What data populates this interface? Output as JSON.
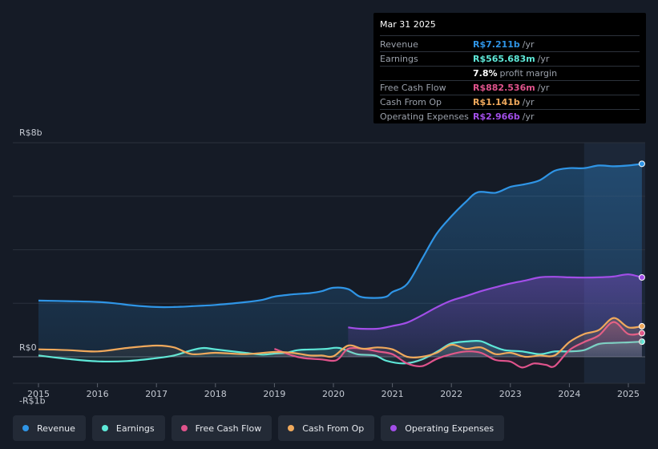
{
  "tooltip": {
    "date": "Mar 31 2025",
    "rows": [
      {
        "label": "Revenue",
        "value": "R$7.211b",
        "unit": "/yr",
        "color": "#2f95e6"
      },
      {
        "label": "Earnings",
        "value": "R$565.683m",
        "unit": "/yr",
        "color": "#5ee8d8"
      },
      {
        "label": "",
        "value": "7.8%",
        "unit": "profit margin",
        "color": "#ffffff"
      },
      {
        "label": "Free Cash Flow",
        "value": "R$882.536m",
        "unit": "/yr",
        "color": "#e0538c"
      },
      {
        "label": "Cash From Op",
        "value": "R$1.141b",
        "unit": "/yr",
        "color": "#f0a95c"
      },
      {
        "label": "Operating Expenses",
        "value": "R$2.966b",
        "unit": "/yr",
        "color": "#a24ee8"
      }
    ]
  },
  "legend": [
    {
      "label": "Revenue",
      "color": "#2f95e6"
    },
    {
      "label": "Earnings",
      "color": "#5ee8d8"
    },
    {
      "label": "Free Cash Flow",
      "color": "#e0538c"
    },
    {
      "label": "Cash From Op",
      "color": "#f0a95c"
    },
    {
      "label": "Operating Expenses",
      "color": "#a24ee8"
    }
  ],
  "chart_data": {
    "type": "area",
    "title": "",
    "y_unit": "R$ billions",
    "ylim": [
      -1,
      8
    ],
    "y_tick_labels": [
      {
        "value": 8,
        "label": "R$8b"
      },
      {
        "value": 0,
        "label": "R$0"
      },
      {
        "value": -1,
        "label": "-R$1b"
      }
    ],
    "gridlines": [
      8,
      6,
      4,
      2,
      0
    ],
    "xlim": [
      2014.85,
      2025.25
    ],
    "x_ticks": [
      2015,
      2016,
      2017,
      2018,
      2019,
      2020,
      2021,
      2022,
      2023,
      2024,
      2025
    ],
    "x_tick_labels": [
      "2015",
      "2016",
      "2017",
      "2018",
      "2019",
      "2020",
      "2021",
      "2022",
      "2023",
      "2024",
      "2025"
    ],
    "forecast_region_start": 2024.25,
    "series": [
      {
        "name": "Revenue",
        "color": "#2f95e6",
        "fill": true,
        "points": [
          [
            2015.0,
            2.1
          ],
          [
            2015.5,
            2.08
          ],
          [
            2016.0,
            2.05
          ],
          [
            2016.3,
            2.0
          ],
          [
            2016.6,
            1.92
          ],
          [
            2017.0,
            1.86
          ],
          [
            2017.3,
            1.86
          ],
          [
            2017.6,
            1.89
          ],
          [
            2018.0,
            1.94
          ],
          [
            2018.5,
            2.04
          ],
          [
            2018.8,
            2.13
          ],
          [
            2019.0,
            2.25
          ],
          [
            2019.3,
            2.33
          ],
          [
            2019.6,
            2.38
          ],
          [
            2019.8,
            2.45
          ],
          [
            2020.0,
            2.58
          ],
          [
            2020.25,
            2.53
          ],
          [
            2020.45,
            2.25
          ],
          [
            2020.7,
            2.2
          ],
          [
            2020.9,
            2.25
          ],
          [
            2021.0,
            2.42
          ],
          [
            2021.25,
            2.72
          ],
          [
            2021.5,
            3.65
          ],
          [
            2021.75,
            4.6
          ],
          [
            2022.0,
            5.25
          ],
          [
            2022.25,
            5.8
          ],
          [
            2022.45,
            6.15
          ],
          [
            2022.75,
            6.13
          ],
          [
            2023.0,
            6.35
          ],
          [
            2023.25,
            6.45
          ],
          [
            2023.5,
            6.6
          ],
          [
            2023.75,
            6.95
          ],
          [
            2024.0,
            7.05
          ],
          [
            2024.25,
            7.05
          ],
          [
            2024.5,
            7.15
          ],
          [
            2024.75,
            7.12
          ],
          [
            2025.0,
            7.15
          ],
          [
            2025.23,
            7.211
          ]
        ]
      },
      {
        "name": "Operating Expenses",
        "color": "#a24ee8",
        "fill": true,
        "points": [
          [
            2020.25,
            1.1
          ],
          [
            2020.45,
            1.05
          ],
          [
            2020.75,
            1.05
          ],
          [
            2021.0,
            1.15
          ],
          [
            2021.25,
            1.28
          ],
          [
            2021.5,
            1.55
          ],
          [
            2021.75,
            1.85
          ],
          [
            2022.0,
            2.1
          ],
          [
            2022.25,
            2.27
          ],
          [
            2022.5,
            2.45
          ],
          [
            2022.75,
            2.6
          ],
          [
            2023.0,
            2.74
          ],
          [
            2023.25,
            2.85
          ],
          [
            2023.5,
            2.97
          ],
          [
            2023.75,
            2.99
          ],
          [
            2024.0,
            2.97
          ],
          [
            2024.25,
            2.96
          ],
          [
            2024.5,
            2.97
          ],
          [
            2024.75,
            3.0
          ],
          [
            2025.0,
            3.08
          ],
          [
            2025.23,
            2.966
          ]
        ]
      },
      {
        "name": "Earnings",
        "color": "#5ee8d8",
        "fill": true,
        "points": [
          [
            2015.0,
            0.05
          ],
          [
            2015.5,
            -0.08
          ],
          [
            2016.0,
            -0.17
          ],
          [
            2016.5,
            -0.16
          ],
          [
            2017.0,
            -0.05
          ],
          [
            2017.3,
            0.05
          ],
          [
            2017.6,
            0.25
          ],
          [
            2017.8,
            0.33
          ],
          [
            2018.0,
            0.28
          ],
          [
            2018.5,
            0.15
          ],
          [
            2018.8,
            0.08
          ],
          [
            2019.0,
            0.12
          ],
          [
            2019.2,
            0.15
          ],
          [
            2019.4,
            0.25
          ],
          [
            2019.7,
            0.28
          ],
          [
            2019.9,
            0.3
          ],
          [
            2020.1,
            0.33
          ],
          [
            2020.4,
            0.1
          ],
          [
            2020.7,
            0.05
          ],
          [
            2020.9,
            -0.15
          ],
          [
            2021.2,
            -0.25
          ],
          [
            2021.5,
            -0.1
          ],
          [
            2021.8,
            0.25
          ],
          [
            2022.0,
            0.5
          ],
          [
            2022.3,
            0.58
          ],
          [
            2022.5,
            0.58
          ],
          [
            2022.7,
            0.4
          ],
          [
            2022.9,
            0.25
          ],
          [
            2023.2,
            0.2
          ],
          [
            2023.5,
            0.1
          ],
          [
            2023.75,
            0.2
          ],
          [
            2024.0,
            0.2
          ],
          [
            2024.25,
            0.25
          ],
          [
            2024.5,
            0.48
          ],
          [
            2024.75,
            0.52
          ],
          [
            2025.0,
            0.54
          ],
          [
            2025.23,
            0.566
          ]
        ]
      },
      {
        "name": "Free Cash Flow",
        "color": "#e0538c",
        "fill": true,
        "points": [
          [
            2019.0,
            0.3
          ],
          [
            2019.3,
            0.05
          ],
          [
            2019.5,
            -0.05
          ],
          [
            2019.8,
            -0.1
          ],
          [
            2020.0,
            -0.15
          ],
          [
            2020.1,
            -0.05
          ],
          [
            2020.25,
            0.3
          ],
          [
            2020.5,
            0.3
          ],
          [
            2020.75,
            0.2
          ],
          [
            2021.0,
            0.1
          ],
          [
            2021.25,
            -0.25
          ],
          [
            2021.5,
            -0.35
          ],
          [
            2021.75,
            -0.08
          ],
          [
            2022.0,
            0.1
          ],
          [
            2022.25,
            0.2
          ],
          [
            2022.5,
            0.15
          ],
          [
            2022.75,
            -0.12
          ],
          [
            2023.0,
            -0.18
          ],
          [
            2023.2,
            -0.4
          ],
          [
            2023.4,
            -0.25
          ],
          [
            2023.6,
            -0.3
          ],
          [
            2023.75,
            -0.35
          ],
          [
            2024.0,
            0.25
          ],
          [
            2024.25,
            0.55
          ],
          [
            2024.5,
            0.8
          ],
          [
            2024.75,
            1.3
          ],
          [
            2025.0,
            0.85
          ],
          [
            2025.23,
            0.883
          ]
        ]
      },
      {
        "name": "Cash From Op",
        "color": "#f0a95c",
        "fill": true,
        "points": [
          [
            2015.0,
            0.28
          ],
          [
            2015.5,
            0.25
          ],
          [
            2016.0,
            0.2
          ],
          [
            2016.5,
            0.33
          ],
          [
            2017.0,
            0.42
          ],
          [
            2017.3,
            0.35
          ],
          [
            2017.6,
            0.1
          ],
          [
            2018.0,
            0.15
          ],
          [
            2018.5,
            0.1
          ],
          [
            2019.0,
            0.18
          ],
          [
            2019.3,
            0.15
          ],
          [
            2019.6,
            0.05
          ],
          [
            2019.8,
            0.05
          ],
          [
            2020.0,
            0.02
          ],
          [
            2020.25,
            0.42
          ],
          [
            2020.5,
            0.3
          ],
          [
            2020.75,
            0.35
          ],
          [
            2021.0,
            0.28
          ],
          [
            2021.25,
            0.0
          ],
          [
            2021.5,
            0.0
          ],
          [
            2021.75,
            0.15
          ],
          [
            2022.0,
            0.45
          ],
          [
            2022.25,
            0.3
          ],
          [
            2022.5,
            0.35
          ],
          [
            2022.75,
            0.1
          ],
          [
            2023.0,
            0.15
          ],
          [
            2023.25,
            0.0
          ],
          [
            2023.5,
            0.05
          ],
          [
            2023.75,
            0.05
          ],
          [
            2024.0,
            0.55
          ],
          [
            2024.25,
            0.85
          ],
          [
            2024.5,
            1.0
          ],
          [
            2024.75,
            1.45
          ],
          [
            2025.0,
            1.1
          ],
          [
            2025.23,
            1.141
          ]
        ]
      }
    ]
  }
}
